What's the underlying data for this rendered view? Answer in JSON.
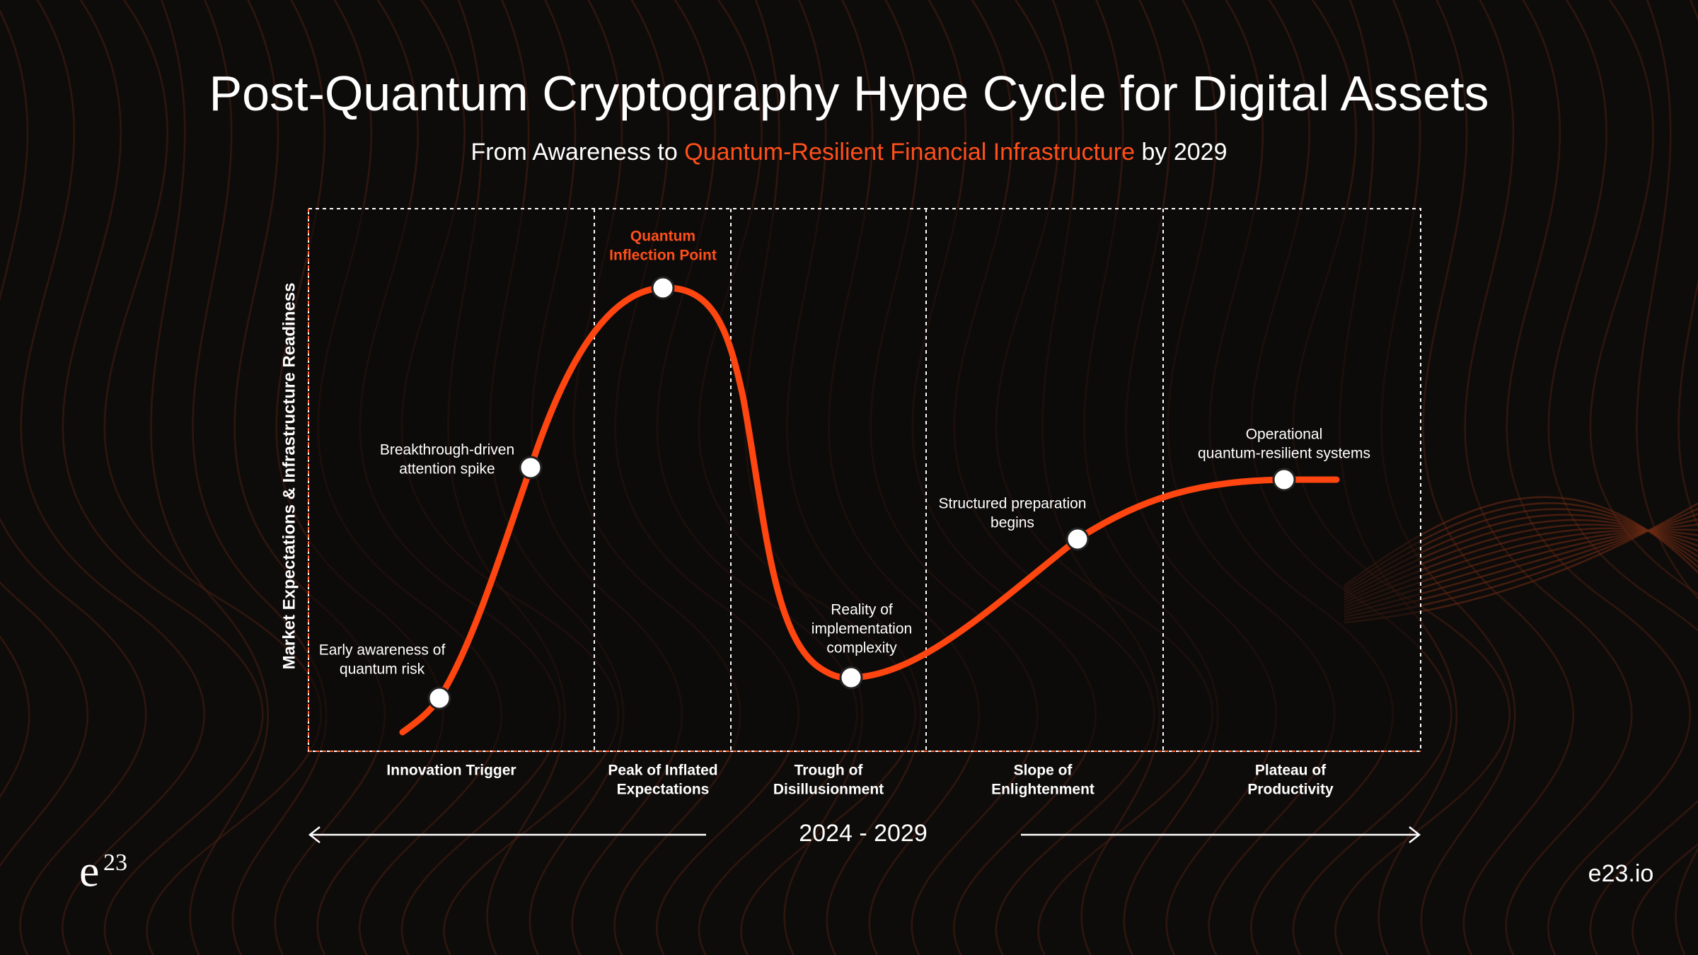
{
  "header": {
    "title": "Post-Quantum Cryptography Hype Cycle for Digital Assets",
    "subtitle": {
      "before": "From Awareness to ",
      "highlight": "Quantum-Resilient Financial Infrastructure",
      "after": " by 2029"
    }
  },
  "y_axis_label": "Market Expectations & Infrastructure Readiness",
  "milestones": [
    {
      "lines": [
        "Early awareness of",
        "quantum risk"
      ]
    },
    {
      "lines": [
        "Breakthrough-driven",
        "attention spike"
      ]
    },
    {
      "lines": [
        "Quantum",
        "Inflection Point"
      ]
    },
    {
      "lines": [
        "Reality of",
        "implementation",
        "complexity"
      ]
    },
    {
      "lines": [
        "Structured preparation",
        "begins"
      ]
    },
    {
      "lines": [
        "Operational",
        "quantum-resilient systems"
      ]
    }
  ],
  "phases": [
    {
      "lines": [
        "Innovation Trigger"
      ]
    },
    {
      "lines": [
        "Peak of Inflated",
        "Expectations"
      ]
    },
    {
      "lines": [
        "Trough of",
        "Disillusionment"
      ]
    },
    {
      "lines": [
        "Slope of",
        "Enlightenment"
      ]
    },
    {
      "lines": [
        "Plateau of",
        "Productivity"
      ]
    }
  ],
  "timeline": "2024 - 2029",
  "brand": {
    "logo_base": "e",
    "logo_sup": "23",
    "url": "e23.io"
  }
}
